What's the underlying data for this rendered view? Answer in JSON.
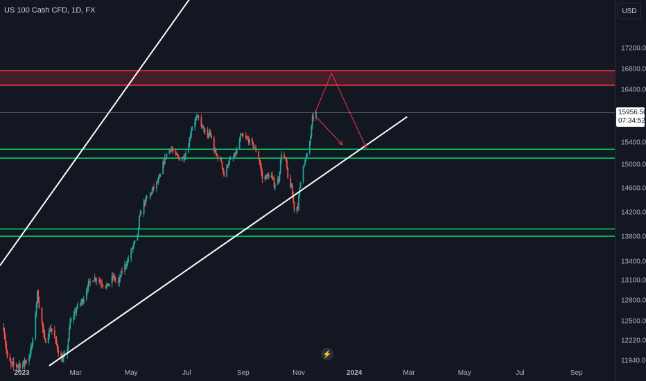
{
  "header": {
    "symbol": "US 100 Cash CFD, 1D, FX"
  },
  "scale": {
    "currency_button": "USD"
  },
  "last_price": {
    "value": "15956.50",
    "countdown": "07:34:52"
  },
  "colors": {
    "background": "#131722",
    "up": "#26a69a",
    "down": "#ef5350",
    "channel": "#ffffff",
    "resistance_zone": "#f23645",
    "support_lines": "#00e676",
    "projection": "#f23645",
    "axis_text": "#b2b5be"
  },
  "icons": {
    "replay": "lightning-icon"
  },
  "chart_data": {
    "type": "candlestick",
    "title": "US 100 Cash CFD, 1D, FX",
    "y_ticks": [
      "17200.00",
      "16800.00",
      "16400.00",
      "15400.00",
      "15000.00",
      "14600.00",
      "14200.00",
      "13800.00",
      "13400.00",
      "13100.00",
      "12800.00",
      "12500.00",
      "12220.00",
      "11940.00"
    ],
    "x_ticks": [
      "2023",
      "Mar",
      "May",
      "Jul",
      "Sep",
      "Nov",
      "2024",
      "Mar",
      "May",
      "Jul",
      "Sep"
    ],
    "ylim": [
      11880,
      17450
    ],
    "xlim": [
      "2022-12-08",
      "2024-10-13"
    ],
    "last_close": 15956.5,
    "resistance_zone": [
      16480,
      16760
    ],
    "support_lines": [
      15270,
      15110,
      13920,
      13800
    ],
    "channel_upper": [
      [
        "2022-12-08",
        13330
      ],
      [
        "2023-10-29",
        17470
      ]
    ],
    "channel_lower": [
      [
        "2023-01-31",
        11880
      ],
      [
        "2024-02-28",
        15880
      ]
    ],
    "projection_paths": [
      [
        [
          "2023-11-19",
          15960
        ],
        [
          "2023-12-07",
          16710
        ],
        [
          "2024-01-14",
          15300
        ]
      ],
      [
        [
          "2023-11-19",
          15900
        ],
        [
          "2023-12-19",
          15350
        ]
      ]
    ],
    "candles_approx": [
      [
        "2022-12-12",
        12400
      ],
      [
        "2022-12-16",
        11960
      ],
      [
        "2022-12-21",
        11880
      ],
      [
        "2023-01-03",
        11900
      ],
      [
        "2023-01-09",
        12000
      ],
      [
        "2023-01-13",
        12200
      ],
      [
        "2023-01-18",
        12900
      ],
      [
        "2023-01-26",
        12200
      ],
      [
        "2023-02-02",
        12400
      ],
      [
        "2023-02-07",
        12200
      ],
      [
        "2023-02-13",
        11950
      ],
      [
        "2023-02-19",
        12000
      ],
      [
        "2023-02-23",
        12480
      ],
      [
        "2023-03-03",
        12700
      ],
      [
        "2023-03-09",
        12800
      ],
      [
        "2023-03-14",
        13000
      ],
      [
        "2023-03-20",
        13120
      ],
      [
        "2023-03-24",
        13130
      ],
      [
        "2023-03-30",
        13050
      ],
      [
        "2023-04-05",
        13000
      ],
      [
        "2023-04-11",
        13150
      ],
      [
        "2023-04-17",
        13050
      ],
      [
        "2023-04-21",
        13250
      ],
      [
        "2023-04-27",
        13400
      ],
      [
        "2023-05-02",
        13600
      ],
      [
        "2023-05-08",
        13800
      ],
      [
        "2023-05-10",
        14100
      ],
      [
        "2023-05-15",
        14350
      ],
      [
        "2023-05-22",
        14500
      ],
      [
        "2023-05-26",
        14600
      ],
      [
        "2023-06-01",
        14750
      ],
      [
        "2023-06-05",
        15000
      ],
      [
        "2023-06-09",
        15180
      ],
      [
        "2023-06-13",
        15300
      ],
      [
        "2023-06-19",
        15150
      ],
      [
        "2023-06-23",
        15100
      ],
      [
        "2023-06-28",
        15130
      ],
      [
        "2023-07-03",
        15350
      ],
      [
        "2023-07-06",
        15650
      ],
      [
        "2023-07-11",
        15850
      ],
      [
        "2023-07-14",
        15850
      ],
      [
        "2023-07-19",
        15650
      ],
      [
        "2023-07-21",
        15600
      ],
      [
        "2023-07-24",
        15450
      ],
      [
        "2023-07-26",
        15600
      ],
      [
        "2023-07-31",
        15250
      ],
      [
        "2023-08-03",
        15150
      ],
      [
        "2023-08-08",
        15050
      ],
      [
        "2023-08-11",
        14800
      ],
      [
        "2023-08-16",
        15050
      ],
      [
        "2023-08-21",
        15100
      ],
      [
        "2023-08-24",
        15200
      ],
      [
        "2023-08-29",
        15500
      ],
      [
        "2023-09-01",
        15500
      ],
      [
        "2023-09-06",
        15450
      ],
      [
        "2023-09-11",
        15350
      ],
      [
        "2023-09-15",
        15250
      ],
      [
        "2023-09-19",
        15050
      ],
      [
        "2023-09-22",
        14750
      ],
      [
        "2023-09-27",
        14800
      ],
      [
        "2023-10-02",
        14800
      ],
      [
        "2023-10-05",
        14650
      ],
      [
        "2023-10-10",
        14750
      ],
      [
        "2023-10-13",
        15200
      ],
      [
        "2023-10-18",
        15050
      ],
      [
        "2023-10-20",
        14750
      ],
      [
        "2023-10-24",
        14600
      ],
      [
        "2023-10-27",
        14250
      ],
      [
        "2023-10-31",
        14300
      ],
      [
        "2023-11-03",
        14700
      ],
      [
        "2023-11-06",
        15000
      ],
      [
        "2023-11-09",
        15100
      ],
      [
        "2023-11-12",
        15300
      ],
      [
        "2023-11-14",
        15500
      ],
      [
        "2023-11-16",
        15850
      ],
      [
        "2023-11-20",
        15956.5
      ]
    ]
  }
}
